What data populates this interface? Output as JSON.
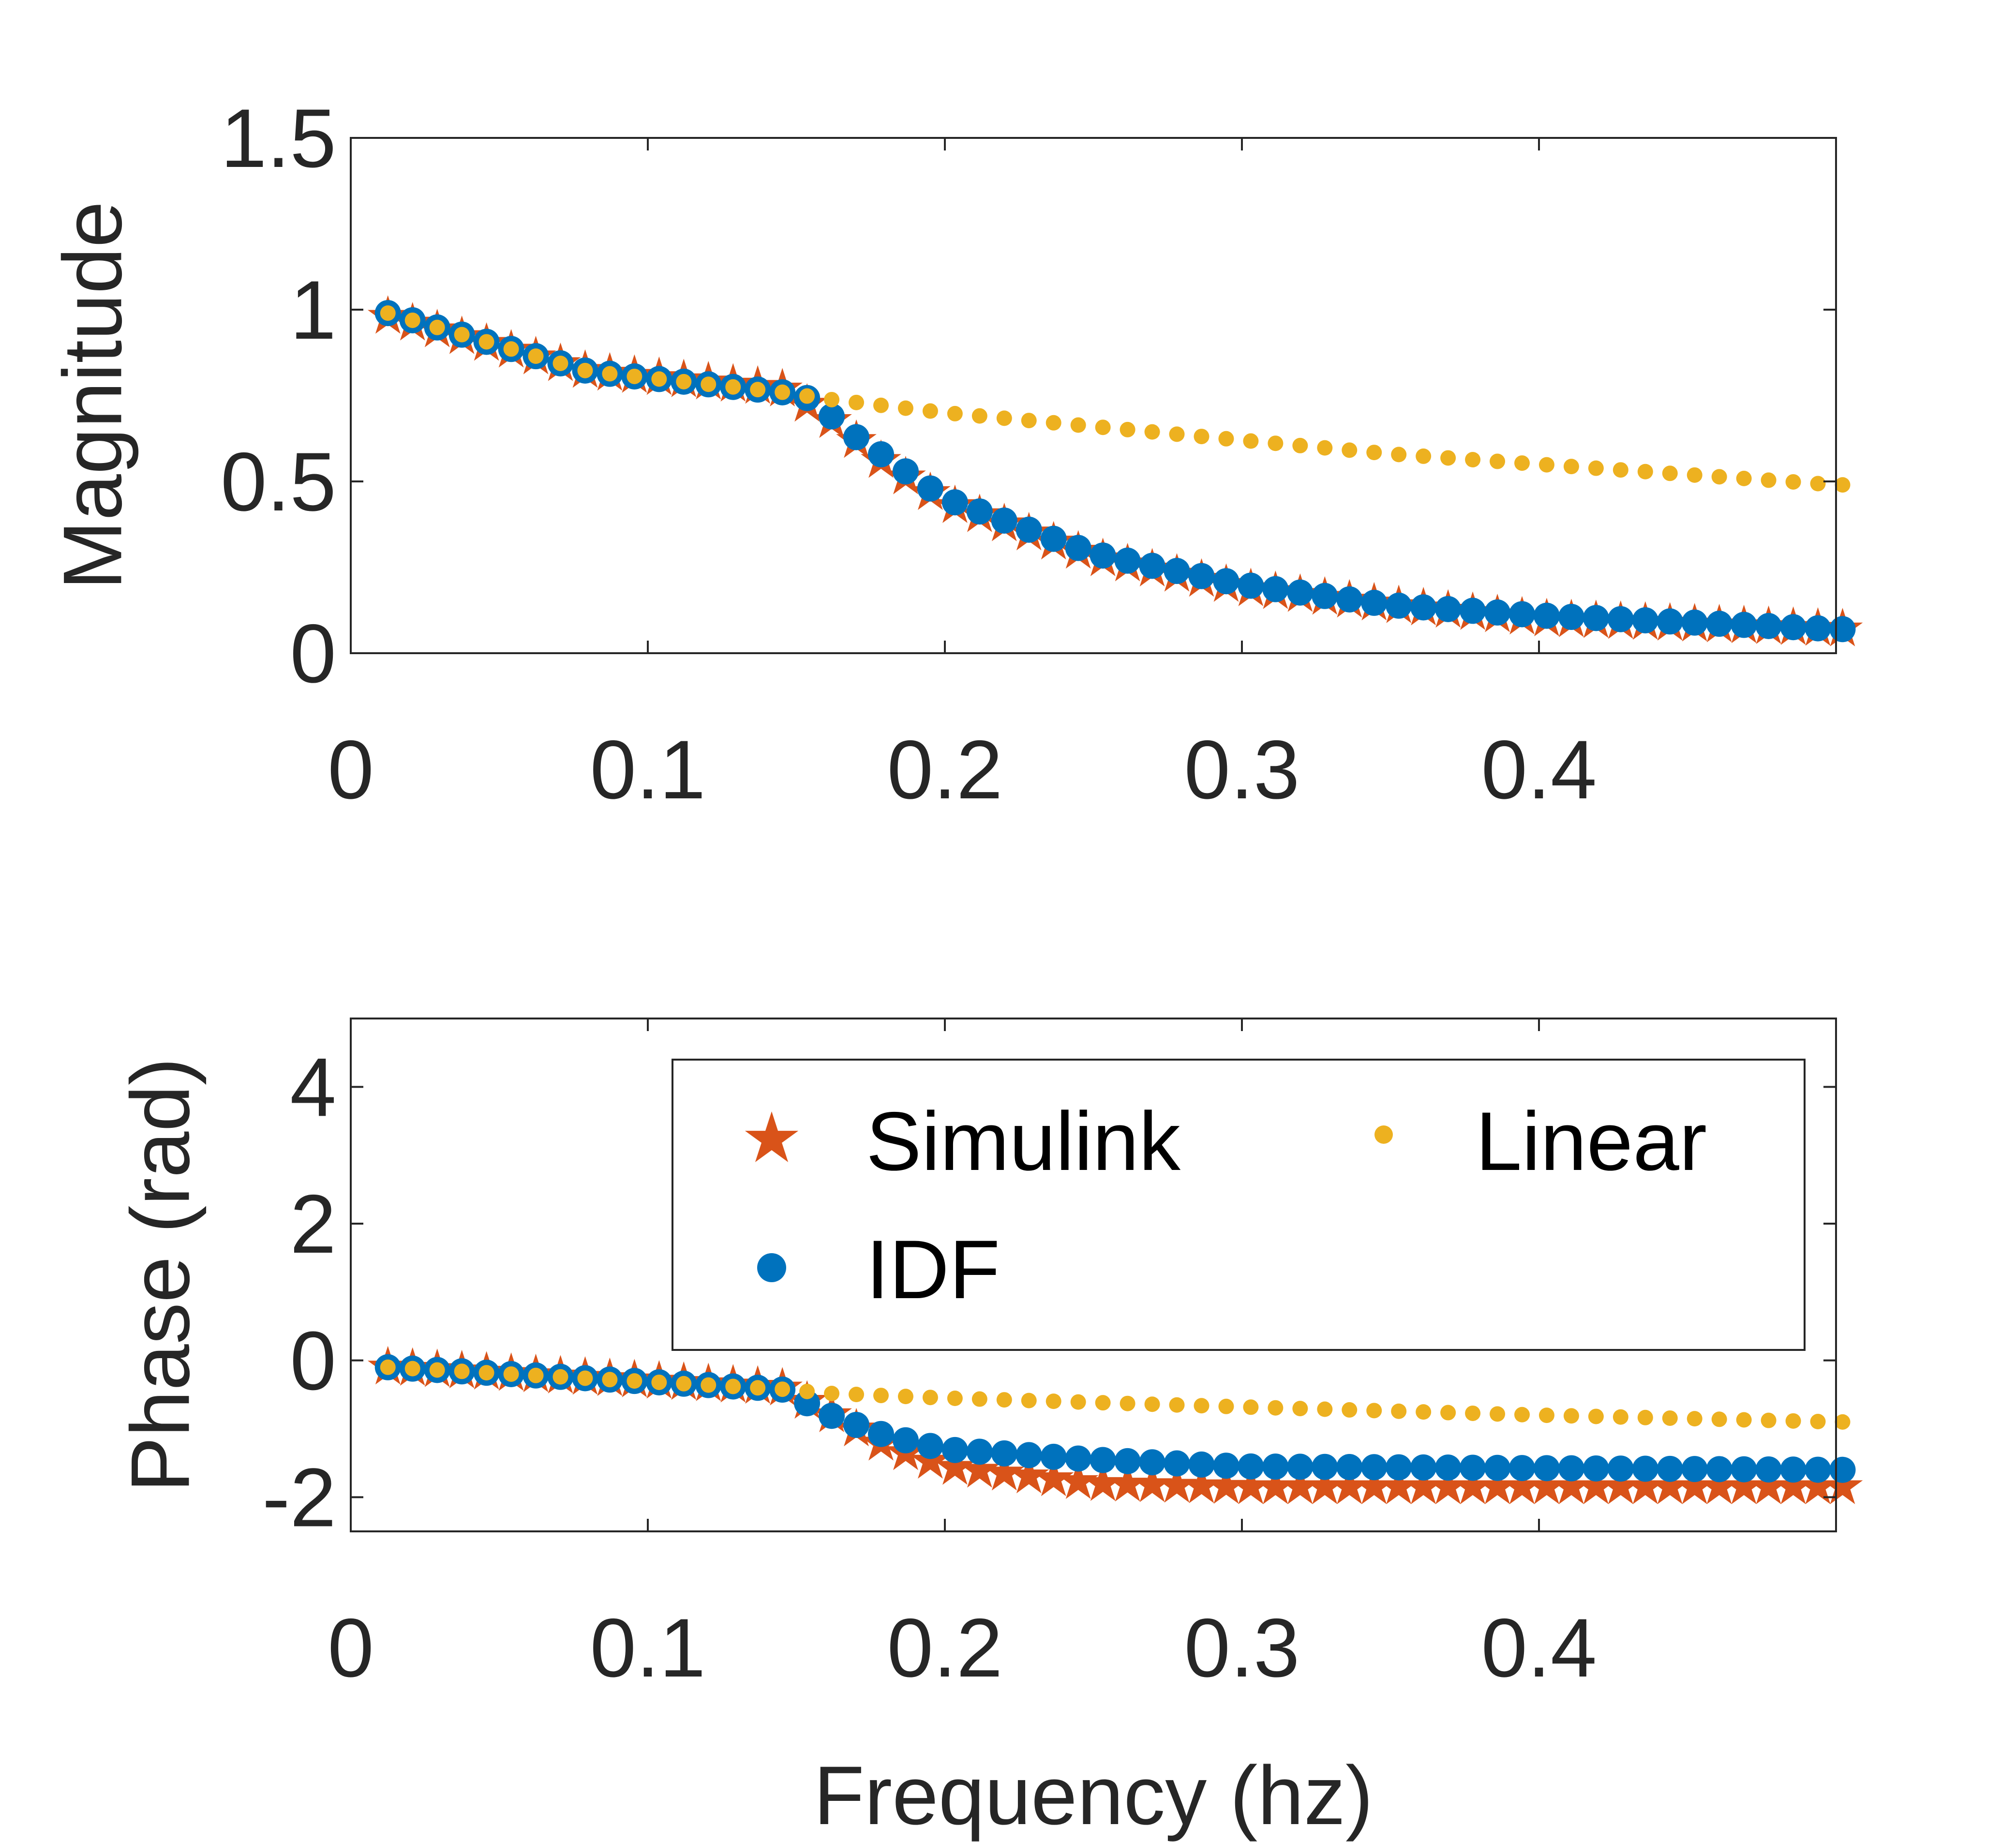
{
  "chart_data": [
    {
      "type": "scatter",
      "panel": "top",
      "title": "",
      "xlabel": "",
      "ylabel": "Magnitude",
      "xlim": [
        0,
        0.5
      ],
      "ylim": [
        0,
        1.5
      ],
      "xticks": [
        0,
        0.1,
        0.2,
        0.3,
        0.4
      ],
      "xtick_labels": [
        "0",
        "0.1",
        "0.2",
        "0.3",
        "0.4"
      ],
      "yticks": [
        0,
        0.5,
        1,
        1.5
      ],
      "ytick_labels": [
        "0",
        "0.5",
        "1",
        "1.5"
      ],
      "x": {
        "start": 0.0125,
        "step": 0.0083,
        "count": 60
      },
      "series": [
        {
          "name": "Simulink",
          "marker": "star",
          "color": "#D95319",
          "keyframes": [
            [
              0.0125,
              0.98
            ],
            [
              0.08,
              0.82
            ],
            [
              0.145,
              0.77
            ],
            [
              0.16,
              0.69
            ],
            [
              0.18,
              0.55
            ],
            [
              0.2,
              0.44
            ],
            [
              0.25,
              0.28
            ],
            [
              0.3,
              0.19
            ],
            [
              0.35,
              0.14
            ],
            [
              0.4,
              0.1
            ],
            [
              0.5,
              0.07
            ]
          ]
        },
        {
          "name": "IDF",
          "marker": "circle",
          "color": "#0072BD",
          "keyframes": [
            [
              0.0125,
              0.99
            ],
            [
              0.08,
              0.82
            ],
            [
              0.145,
              0.76
            ],
            [
              0.155,
              0.74
            ],
            [
              0.17,
              0.63
            ],
            [
              0.2,
              0.45
            ],
            [
              0.25,
              0.29
            ],
            [
              0.3,
              0.2
            ],
            [
              0.35,
              0.14
            ],
            [
              0.4,
              0.11
            ],
            [
              0.5,
              0.07
            ]
          ]
        },
        {
          "name": "Linear",
          "marker": "dot",
          "color": "#EDB120",
          "keyframes": [
            [
              0.0125,
              0.99
            ],
            [
              0.08,
              0.82
            ],
            [
              0.145,
              0.76
            ],
            [
              0.16,
              0.74
            ],
            [
              0.2,
              0.7
            ],
            [
              0.25,
              0.66
            ],
            [
              0.3,
              0.62
            ],
            [
              0.35,
              0.58
            ],
            [
              0.4,
              0.55
            ],
            [
              0.5,
              0.49
            ]
          ]
        }
      ]
    },
    {
      "type": "scatter",
      "panel": "bottom",
      "title": "",
      "xlabel": "Frequency (hz)",
      "ylabel": "Phase (rad)",
      "xlim": [
        0,
        0.5
      ],
      "ylim": [
        -2.5,
        5
      ],
      "xticks": [
        0,
        0.1,
        0.2,
        0.3,
        0.4
      ],
      "xtick_labels": [
        "0",
        "0.1",
        "0.2",
        "0.3",
        "0.4"
      ],
      "yticks": [
        -2,
        0,
        2,
        4
      ],
      "ytick_labels": [
        "-2",
        "0",
        "2",
        "4"
      ],
      "x": {
        "start": 0.0125,
        "step": 0.0083,
        "count": 60
      },
      "legend": {
        "position": "upper-right",
        "columns": 2,
        "entries": [
          "Simulink",
          "Linear",
          "IDF"
        ]
      },
      "series": [
        {
          "name": "Simulink",
          "marker": "star",
          "color": "#D95319",
          "keyframes": [
            [
              0.0125,
              -0.1
            ],
            [
              0.145,
              -0.4
            ],
            [
              0.16,
              -0.75
            ],
            [
              0.18,
              -1.25
            ],
            [
              0.2,
              -1.55
            ],
            [
              0.25,
              -1.8
            ],
            [
              0.3,
              -1.85
            ],
            [
              0.5,
              -1.85
            ]
          ]
        },
        {
          "name": "IDF",
          "marker": "circle",
          "color": "#0072BD",
          "keyframes": [
            [
              0.0125,
              -0.1
            ],
            [
              0.145,
              -0.42
            ],
            [
              0.16,
              -0.78
            ],
            [
              0.18,
              -1.1
            ],
            [
              0.2,
              -1.3
            ],
            [
              0.25,
              -1.45
            ],
            [
              0.3,
              -1.55
            ],
            [
              0.5,
              -1.6
            ]
          ]
        },
        {
          "name": "Linear",
          "marker": "dot",
          "color": "#EDB120",
          "keyframes": [
            [
              0.0125,
              -0.1
            ],
            [
              0.145,
              -0.42
            ],
            [
              0.16,
              -0.48
            ],
            [
              0.2,
              -0.55
            ],
            [
              0.3,
              -0.68
            ],
            [
              0.4,
              -0.8
            ],
            [
              0.5,
              -0.9
            ]
          ]
        }
      ]
    }
  ]
}
